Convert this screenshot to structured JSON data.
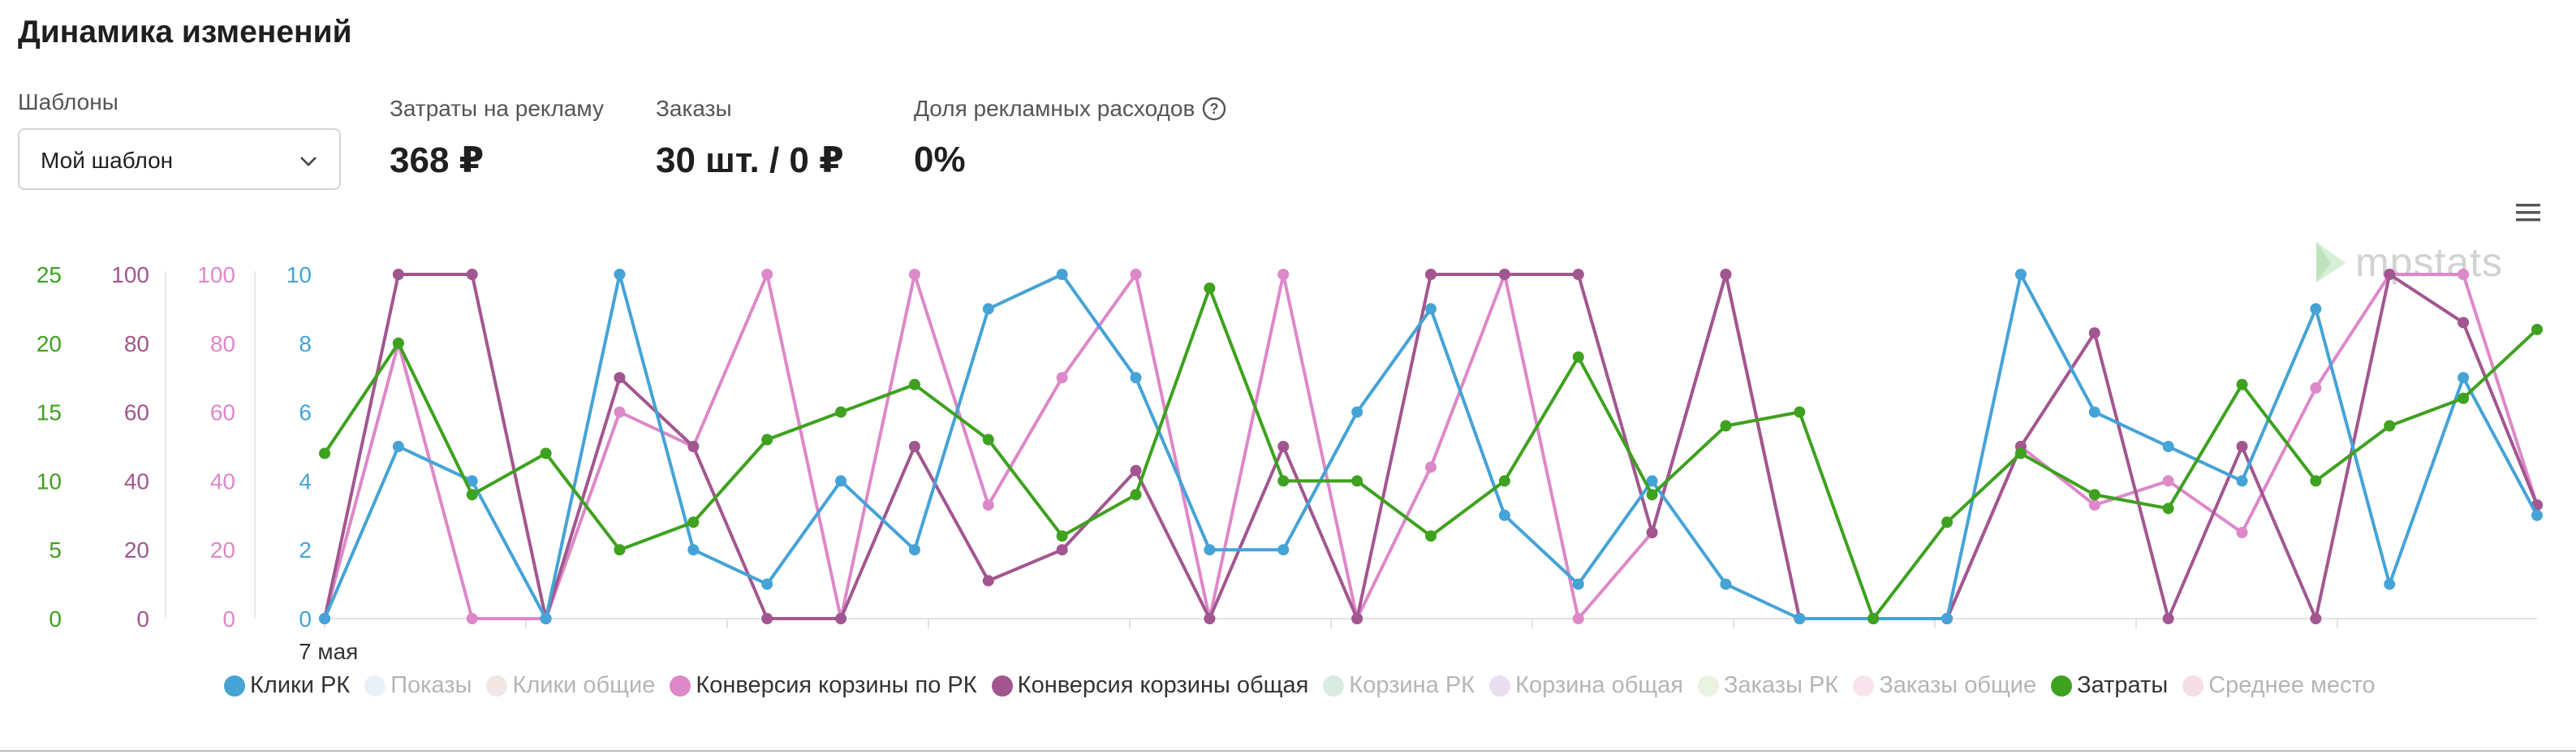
{
  "header": {
    "title": "Динамика изменений"
  },
  "templates": {
    "label": "Шаблоны",
    "selected": "Мой шаблон"
  },
  "metrics": [
    {
      "label": "Затраты на рекламу",
      "value": "368 ₽"
    },
    {
      "label": "Заказы",
      "value": "30 шт. / 0 ₽"
    },
    {
      "label": "Доля рекламных расходов",
      "value": "0%",
      "help": "?"
    }
  ],
  "watermark": "mpstats",
  "chart_data": {
    "type": "line",
    "x_first_label": "7 мая",
    "point_count": 31,
    "axes": [
      {
        "id": "zatraty",
        "color": "#3ea11f",
        "ylim": [
          0,
          25
        ],
        "ticks": [
          0,
          5,
          10,
          15,
          20,
          25
        ]
      },
      {
        "id": "konv_obsh",
        "color": "#a2568f",
        "ylim": [
          0,
          100
        ],
        "ticks": [
          0,
          20,
          40,
          60,
          80,
          100
        ]
      },
      {
        "id": "konv_rk",
        "color": "#dd88c8",
        "ylim": [
          0,
          100
        ],
        "ticks": [
          0,
          20,
          40,
          60,
          80,
          100
        ]
      },
      {
        "id": "kliki",
        "color": "#45a3d6",
        "ylim": [
          0,
          10
        ],
        "ticks": [
          0,
          2,
          4,
          6,
          8,
          10
        ]
      }
    ],
    "series": [
      {
        "name": "Конверсия корзины по РК",
        "axis": "konv_rk",
        "color": "#dd88c8",
        "values": [
          0,
          80,
          0,
          0,
          60,
          50,
          100,
          0,
          100,
          33,
          70,
          100,
          0,
          100,
          0,
          44,
          100,
          0,
          25,
          100,
          0,
          0,
          0,
          50,
          33,
          40,
          25,
          67,
          100,
          100,
          33
        ]
      },
      {
        "name": "Конверсия корзины общая",
        "axis": "konv_obsh",
        "color": "#a2568f",
        "values": [
          0,
          100,
          100,
          0,
          70,
          50,
          0,
          0,
          50,
          11,
          20,
          43,
          0,
          50,
          0,
          100,
          100,
          100,
          25,
          100,
          0,
          0,
          0,
          50,
          83,
          0,
          50,
          0,
          100,
          86,
          33
        ]
      },
      {
        "name": "Клики РК",
        "axis": "kliki",
        "color": "#45a3d6",
        "values": [
          0,
          5,
          4,
          0,
          10,
          2,
          1,
          4,
          2,
          9,
          10,
          7,
          2,
          2,
          6,
          9,
          3,
          1,
          4,
          1,
          0,
          0,
          0,
          10,
          6,
          5,
          4,
          9,
          1,
          7,
          3
        ]
      },
      {
        "name": "Затраты",
        "axis": "zatraty",
        "color": "#3ea11f",
        "values": [
          12,
          20,
          9,
          12,
          5,
          7,
          13,
          15,
          17,
          13,
          6,
          9,
          24,
          10,
          10,
          6,
          10,
          19,
          9,
          14,
          15,
          0,
          7,
          12,
          9,
          8,
          17,
          10,
          14,
          16,
          21
        ]
      }
    ]
  },
  "legend": [
    {
      "label": "Клики РК",
      "color": "#45a3d6",
      "active": true
    },
    {
      "label": "Показы",
      "color": "#e7f1f7",
      "active": false
    },
    {
      "label": "Клики общие",
      "color": "#f0e6e3",
      "active": false
    },
    {
      "label": "Конверсия корзины по РК",
      "color": "#dd88c8",
      "active": true
    },
    {
      "label": "Конверсия корзины общая",
      "color": "#a2568f",
      "active": true
    },
    {
      "label": "Корзина РК",
      "color": "#d8ece2",
      "active": false
    },
    {
      "label": "Корзина общая",
      "color": "#e9dff0",
      "active": false
    },
    {
      "label": "Заказы РК",
      "color": "#eaf3e2",
      "active": false
    },
    {
      "label": "Заказы общие",
      "color": "#f7e4ec",
      "active": false
    },
    {
      "label": "Затраты",
      "color": "#3ea11f",
      "active": true
    },
    {
      "label": "Среднее место",
      "color": "#f5dfe3",
      "active": false
    }
  ]
}
